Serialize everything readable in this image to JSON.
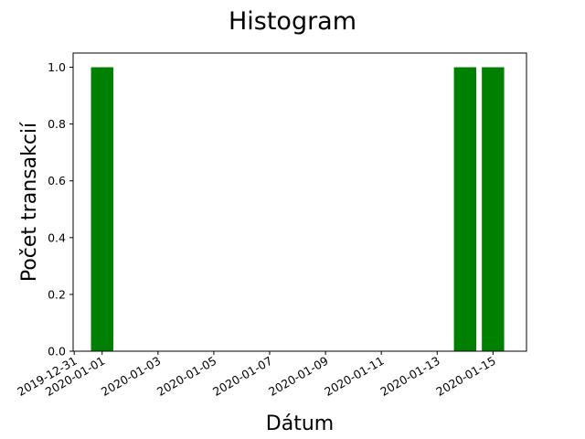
{
  "chart_data": {
    "type": "bar",
    "title": "Histogram",
    "xlabel": "Dátum",
    "ylabel": "Počet transakcií",
    "x": [
      "2020-01-01",
      "2020-01-14",
      "2020-01-15"
    ],
    "values": [
      1,
      1,
      1
    ],
    "bar_color": "#008000",
    "xlim": [
      "2019-12-31",
      "2020-01-16"
    ],
    "ylim": [
      0,
      1.05
    ],
    "x_ticks": [
      "2019-12-31",
      "2020-01-01",
      "2020-01-03",
      "2020-01-05",
      "2020-01-07",
      "2020-01-09",
      "2020-01-11",
      "2020-01-13",
      "2020-01-15"
    ],
    "y_ticks": [
      "0.0",
      "0.2",
      "0.4",
      "0.6",
      "0.8",
      "1.0"
    ],
    "grid": false,
    "legend": "none"
  }
}
